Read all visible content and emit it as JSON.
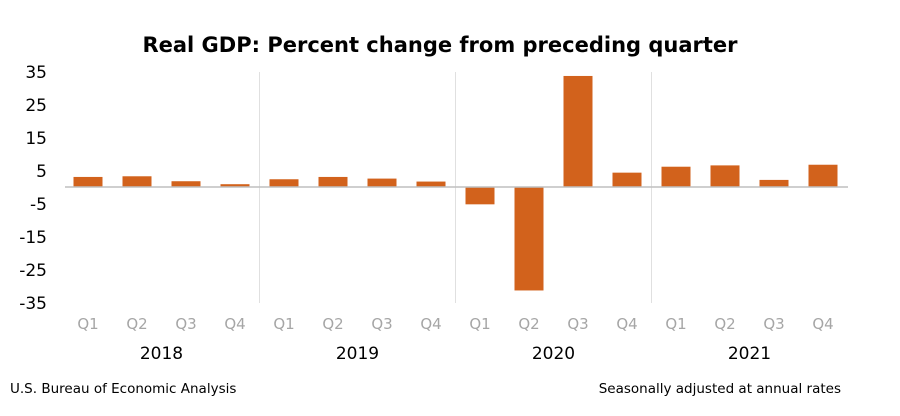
{
  "chart_data": {
    "type": "bar",
    "title": "Real GDP:  Percent change from preceding quarter",
    "categories": [
      "Q1",
      "Q2",
      "Q3",
      "Q4",
      "Q1",
      "Q2",
      "Q3",
      "Q4",
      "Q1",
      "Q2",
      "Q3",
      "Q4",
      "Q1",
      "Q2",
      "Q3",
      "Q4"
    ],
    "groups": [
      "2018",
      "2019",
      "2020",
      "2021"
    ],
    "values": [
      3.2,
      3.4,
      1.9,
      1.0,
      2.5,
      3.2,
      2.7,
      1.8,
      -5.1,
      -31.2,
      33.8,
      4.5,
      6.3,
      6.7,
      2.3,
      6.9
    ],
    "ylim": [
      -35,
      35
    ],
    "yticks": [
      "35",
      "25",
      "15",
      "5",
      "-5",
      "-15",
      "-25",
      "-35"
    ],
    "ytick_values": [
      35,
      25,
      15,
      5,
      -5,
      -15,
      -25,
      -35
    ],
    "grid": false,
    "bar_color": "#D2621C",
    "xlabel": "",
    "ylabel": ""
  },
  "footer": {
    "source": "U.S. Bureau of Economic Analysis",
    "note": "Seasonally adjusted at annual rates"
  }
}
